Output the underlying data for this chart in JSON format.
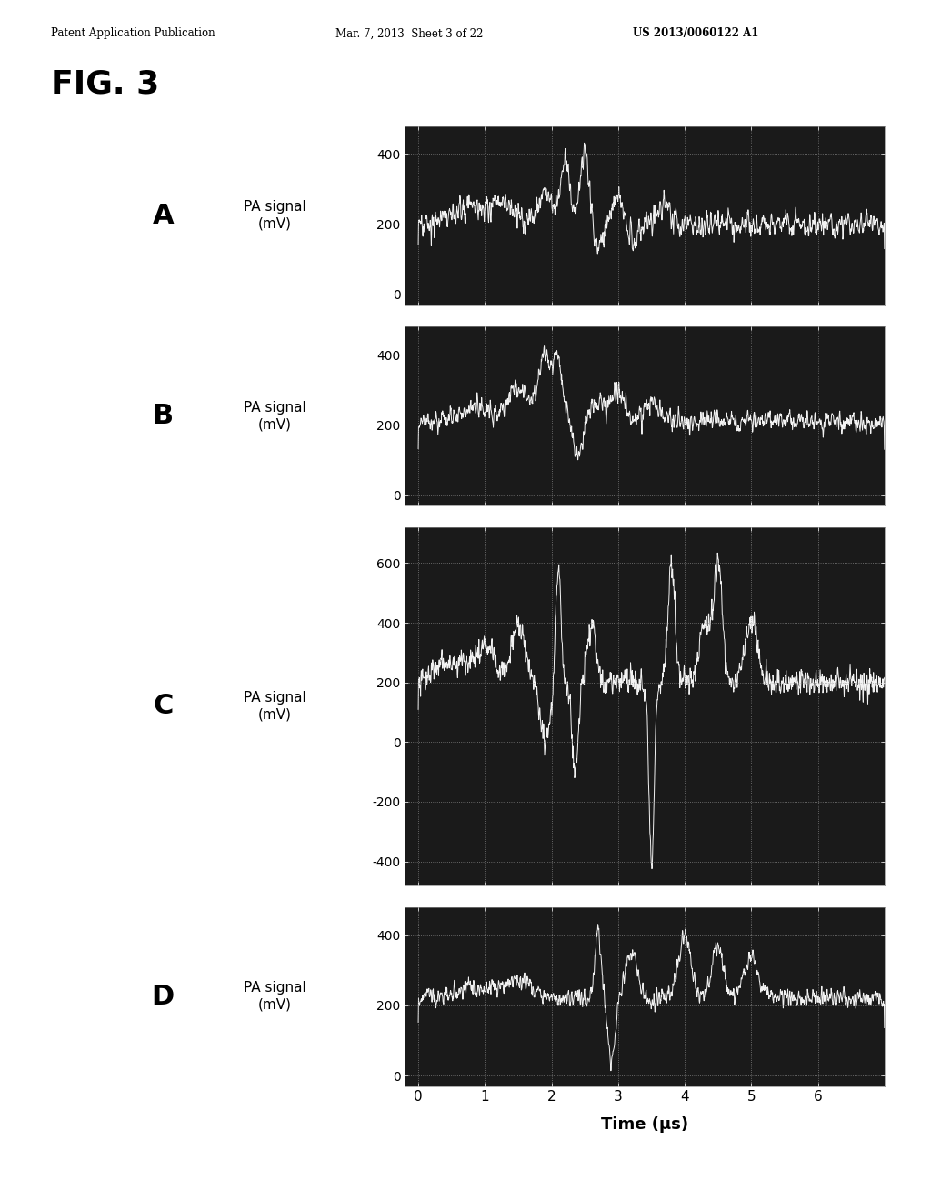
{
  "header_left": "Patent Application Publication",
  "header_mid": "Mar. 7, 2013  Sheet 3 of 22",
  "header_right": "US 2013/0060122 A1",
  "fig_title": "FIG. 3",
  "background_color": "#111111",
  "line_color": "#ffffff",
  "grid_color": "#aaaaaa",
  "panel_A": {
    "ylim": [
      -30,
      480
    ],
    "yticks": [
      0,
      200,
      400
    ],
    "yticklabels": [
      "0",
      "200",
      "400"
    ]
  },
  "panel_B": {
    "ylim": [
      -30,
      480
    ],
    "yticks": [
      0,
      200,
      400
    ],
    "yticklabels": [
      "0",
      "200",
      "400"
    ]
  },
  "panel_C": {
    "ylim": [
      -480,
      720
    ],
    "yticks": [
      -400,
      -200,
      0,
      200,
      400,
      600
    ],
    "yticklabels": [
      "-400",
      "-200",
      "0",
      "200",
      "400",
      "600"
    ]
  },
  "panel_D": {
    "ylim": [
      -30,
      480
    ],
    "yticks": [
      0,
      200,
      400
    ],
    "yticklabels": [
      "0",
      "200",
      "400"
    ]
  },
  "xlim": [
    -0.2,
    7.0
  ],
  "xticks": [
    0,
    1,
    2,
    3,
    4,
    5,
    6
  ],
  "xticklabels": [
    "0",
    "1",
    "2",
    "3",
    "4",
    "5",
    "6"
  ],
  "xlabel": "Time (μs)"
}
